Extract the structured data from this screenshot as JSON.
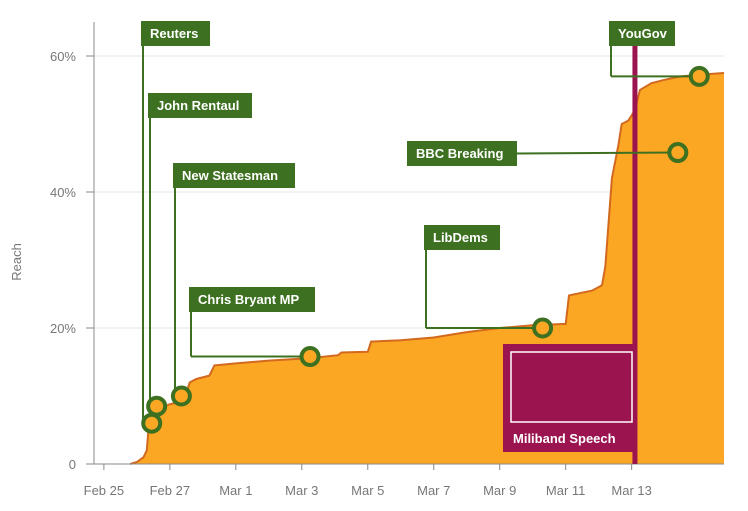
{
  "chart_data": {
    "type": "area",
    "title": "",
    "xlabel": "",
    "ylabel": "Reach",
    "x_ticks": [
      "Feb 25",
      "Feb 27",
      "Mar 1",
      "Mar 3",
      "Mar 5",
      "Mar 7",
      "Mar 9",
      "Mar 11",
      "Mar 13"
    ],
    "y_ticks": [
      "0",
      "20%",
      "40%",
      "60%"
    ],
    "ylim": [
      0,
      65
    ],
    "xlim_days": [
      -0.3,
      18.8
    ],
    "grid": "horizontal",
    "colors": {
      "area_fill": "#FBA724",
      "area_line": "#D2691E",
      "annotation": "#3D7020",
      "speech": "#9B1450",
      "grid": "#e6e6e6",
      "axis": "#888888"
    },
    "series": [
      {
        "points": [
          [
            0.8,
            0
          ],
          [
            1.0,
            0.3
          ],
          [
            1.2,
            1
          ],
          [
            1.3,
            2
          ],
          [
            1.35,
            5
          ],
          [
            1.45,
            6
          ],
          [
            1.6,
            7
          ],
          [
            1.75,
            8
          ],
          [
            1.85,
            8.5
          ],
          [
            2.0,
            8.8
          ],
          [
            2.2,
            9
          ],
          [
            2.35,
            10
          ],
          [
            2.5,
            10.5
          ],
          [
            2.6,
            12
          ],
          [
            2.8,
            12.5
          ],
          [
            3.2,
            13
          ],
          [
            3.35,
            14.5
          ],
          [
            4.0,
            14.8
          ],
          [
            5.0,
            15.2
          ],
          [
            6.0,
            15.5
          ],
          [
            6.5,
            15.7
          ],
          [
            7.1,
            16
          ],
          [
            7.2,
            16.4
          ],
          [
            8.0,
            16.5
          ],
          [
            8.1,
            18
          ],
          [
            9.0,
            18.2
          ],
          [
            10.0,
            18.6
          ],
          [
            11.0,
            19.4
          ],
          [
            12.0,
            20
          ],
          [
            13.0,
            20.4
          ],
          [
            14.0,
            20.6
          ],
          [
            14.1,
            24.8
          ],
          [
            14.8,
            25.5
          ],
          [
            15.1,
            26.3
          ],
          [
            15.2,
            29
          ],
          [
            15.4,
            42
          ],
          [
            15.6,
            47
          ],
          [
            15.7,
            50
          ],
          [
            15.9,
            50.5
          ],
          [
            16.1,
            52
          ],
          [
            16.25,
            55
          ],
          [
            16.6,
            56
          ],
          [
            17.0,
            56.5
          ],
          [
            17.5,
            57
          ],
          [
            18.2,
            57.3
          ],
          [
            18.8,
            57.5
          ]
        ]
      }
    ],
    "annotations": [
      {
        "label": "Reuters",
        "x": 1.45,
        "y": 6.0
      },
      {
        "label": "John Rentaul",
        "x": 1.6,
        "y": 8.5
      },
      {
        "label": "New Statesman",
        "x": 2.35,
        "y": 10.0
      },
      {
        "label": "Chris Bryant MP",
        "x": 6.25,
        "y": 15.8
      },
      {
        "label": "LibDems",
        "x": 13.3,
        "y": 20.0
      },
      {
        "label": "BBC Breaking",
        "x": 17.4,
        "y": 45.8
      },
      {
        "label": "YouGov",
        "x": 18.05,
        "y": 57.0
      }
    ],
    "event": {
      "label": "Miliband Speech",
      "x": 16.1
    }
  }
}
